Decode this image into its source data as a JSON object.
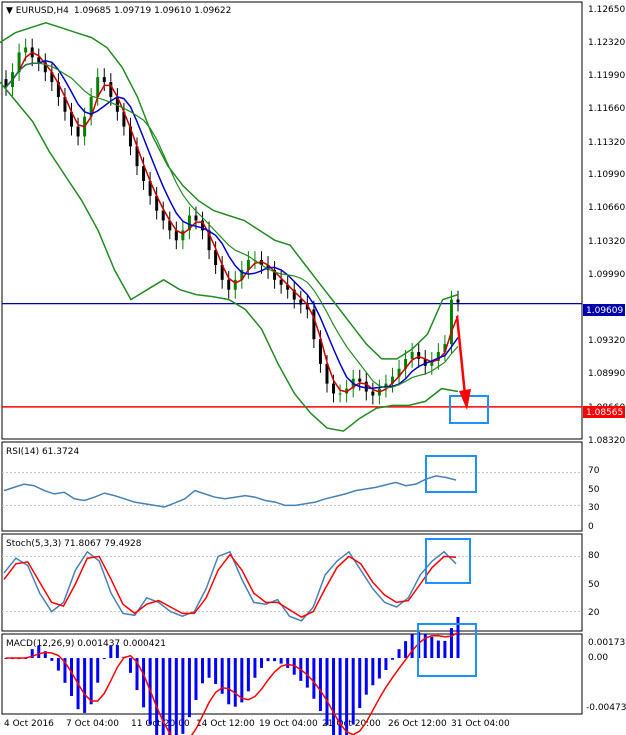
{
  "header": {
    "symbol": "EURUSD,H4",
    "ohlc": "1.09685 1.09719 1.09610 1.09622"
  },
  "colors": {
    "bull_candle": "#008000",
    "bear_candle": "#000000",
    "bollinger": "#228b22",
    "fast_ma": "#cc0000",
    "slow_ma": "#0000cc",
    "support_line": "#ff0000",
    "current_line": "#0000aa",
    "rsi_line": "#4682b4",
    "stoch_main": "#4682b4",
    "stoch_signal": "#ff0000",
    "macd_hist": "#0000ff",
    "macd_signal": "#ff0000",
    "highlight_box": "#1e90ff",
    "arrow": "#ff0000"
  },
  "x_axis": {
    "labels": [
      "4 Oct 2016",
      "7 Oct 04:00",
      "11 Oct 20:00",
      "14 Oct 12:00",
      "19 Oct 04:00",
      "21 Oct 20:00",
      "26 Oct 12:00",
      "31 Oct 04:00"
    ]
  },
  "price_levels": {
    "current": "1.09609",
    "support": "1.08565"
  },
  "chart_data": [
    {
      "type": "candlestick",
      "ylim": [
        1.0825,
        1.1265
      ],
      "y_ticks": [
        "1.12650",
        "1.12320",
        "1.11990",
        "1.11660",
        "1.11320",
        "1.10990",
        "1.10660",
        "1.10320",
        "1.09990",
        "1.09320",
        "1.08990",
        "1.08660",
        "1.08320"
      ],
      "close_approx": [
        1.118,
        1.1195,
        1.1215,
        1.122,
        1.121,
        1.1205,
        1.1195,
        1.1185,
        1.117,
        1.1155,
        1.114,
        1.113,
        1.115,
        1.117,
        1.119,
        1.1185,
        1.117,
        1.1155,
        1.114,
        1.112,
        1.11,
        1.1085,
        1.107,
        1.1055,
        1.1045,
        1.1035,
        1.1025,
        1.1035,
        1.105,
        1.1045,
        1.1035,
        1.1015,
        1.1,
        1.0985,
        1.0975,
        1.0985,
        1.0995,
        1.1005,
        1.1005,
        1.1,
        1.0995,
        1.0985,
        1.098,
        1.0975,
        1.0965,
        1.096,
        1.0955,
        1.0925,
        1.09,
        1.088,
        1.087,
        1.087,
        1.0875,
        1.0885,
        1.0882,
        1.0872,
        1.0868,
        1.0875,
        1.088,
        1.0887,
        1.0895,
        1.0905,
        1.0912,
        1.0905,
        1.0898,
        1.0903,
        1.0912,
        1.092,
        1.0965,
        1.0962
      ],
      "bollinger_upper_approx": [
        1.1225,
        1.1235,
        1.124,
        1.1245,
        1.124,
        1.1235,
        1.123,
        1.122,
        1.12,
        1.117,
        1.113,
        1.11,
        1.108,
        1.1065,
        1.1055,
        1.105,
        1.1045,
        1.1035,
        1.1025,
        1.102,
        1.1,
        1.098,
        1.096,
        1.094,
        1.092,
        1.0905,
        1.0905,
        1.0915,
        1.093,
        1.0965,
        1.097
      ],
      "bollinger_lower_approx": [
        1.1185,
        1.1165,
        1.1145,
        1.1115,
        1.109,
        1.1065,
        1.1035,
        1.0995,
        1.0965,
        1.0975,
        1.0985,
        1.0975,
        1.097,
        1.0968,
        1.0965,
        1.0955,
        1.0935,
        1.09,
        1.087,
        1.085,
        1.0835,
        1.0832,
        1.0845,
        1.0855,
        1.0858,
        1.0858,
        1.0862,
        1.0875,
        1.0872
      ],
      "horizontal_lines": [
        {
          "value": 1.09609,
          "label": "1.09609"
        },
        {
          "value": 1.08565,
          "label": "1.08565"
        }
      ]
    },
    {
      "type": "line",
      "title": "RSI(14) 61.3724",
      "ylim": [
        0,
        100
      ],
      "y_ticks": [
        "70",
        "50",
        "30",
        "0"
      ],
      "values": [
        48,
        52,
        56,
        54,
        48,
        44,
        46,
        38,
        36,
        40,
        45,
        42,
        38,
        34,
        32,
        30,
        28,
        33,
        38,
        48,
        44,
        40,
        38,
        40,
        42,
        40,
        36,
        34,
        30,
        30,
        32,
        34,
        38,
        41,
        44,
        48,
        50,
        52,
        55,
        58,
        54,
        56,
        62,
        66,
        64,
        61
      ]
    },
    {
      "type": "line",
      "title": "Stoch(5,3,3) 71.8067 79.4928",
      "ylim": [
        0,
        100
      ],
      "y_ticks": [
        "80",
        "50",
        "20"
      ],
      "series": [
        {
          "values": [
            62,
            78,
            70,
            40,
            20,
            30,
            65,
            85,
            75,
            40,
            18,
            16,
            35,
            30,
            20,
            15,
            20,
            45,
            80,
            85,
            55,
            30,
            28,
            33,
            15,
            10,
            25,
            60,
            75,
            85,
            65,
            45,
            30,
            25,
            35,
            60,
            75,
            85,
            72
          ]
        },
        {
          "values": [
            55,
            72,
            74,
            52,
            30,
            26,
            50,
            78,
            80,
            55,
            28,
            18,
            28,
            32,
            25,
            18,
            18,
            35,
            65,
            82,
            65,
            40,
            30,
            30,
            22,
            14,
            20,
            45,
            68,
            80,
            72,
            52,
            38,
            30,
            32,
            50,
            68,
            80,
            79
          ]
        }
      ]
    },
    {
      "type": "bar",
      "title": "MACD(12,26,9) 0.001437 0.000421",
      "ylim": [
        -0.00483,
        0.00185
      ],
      "y_ticks": [
        "0.001731",
        "0.00",
        "-0.004735"
      ]
    }
  ]
}
